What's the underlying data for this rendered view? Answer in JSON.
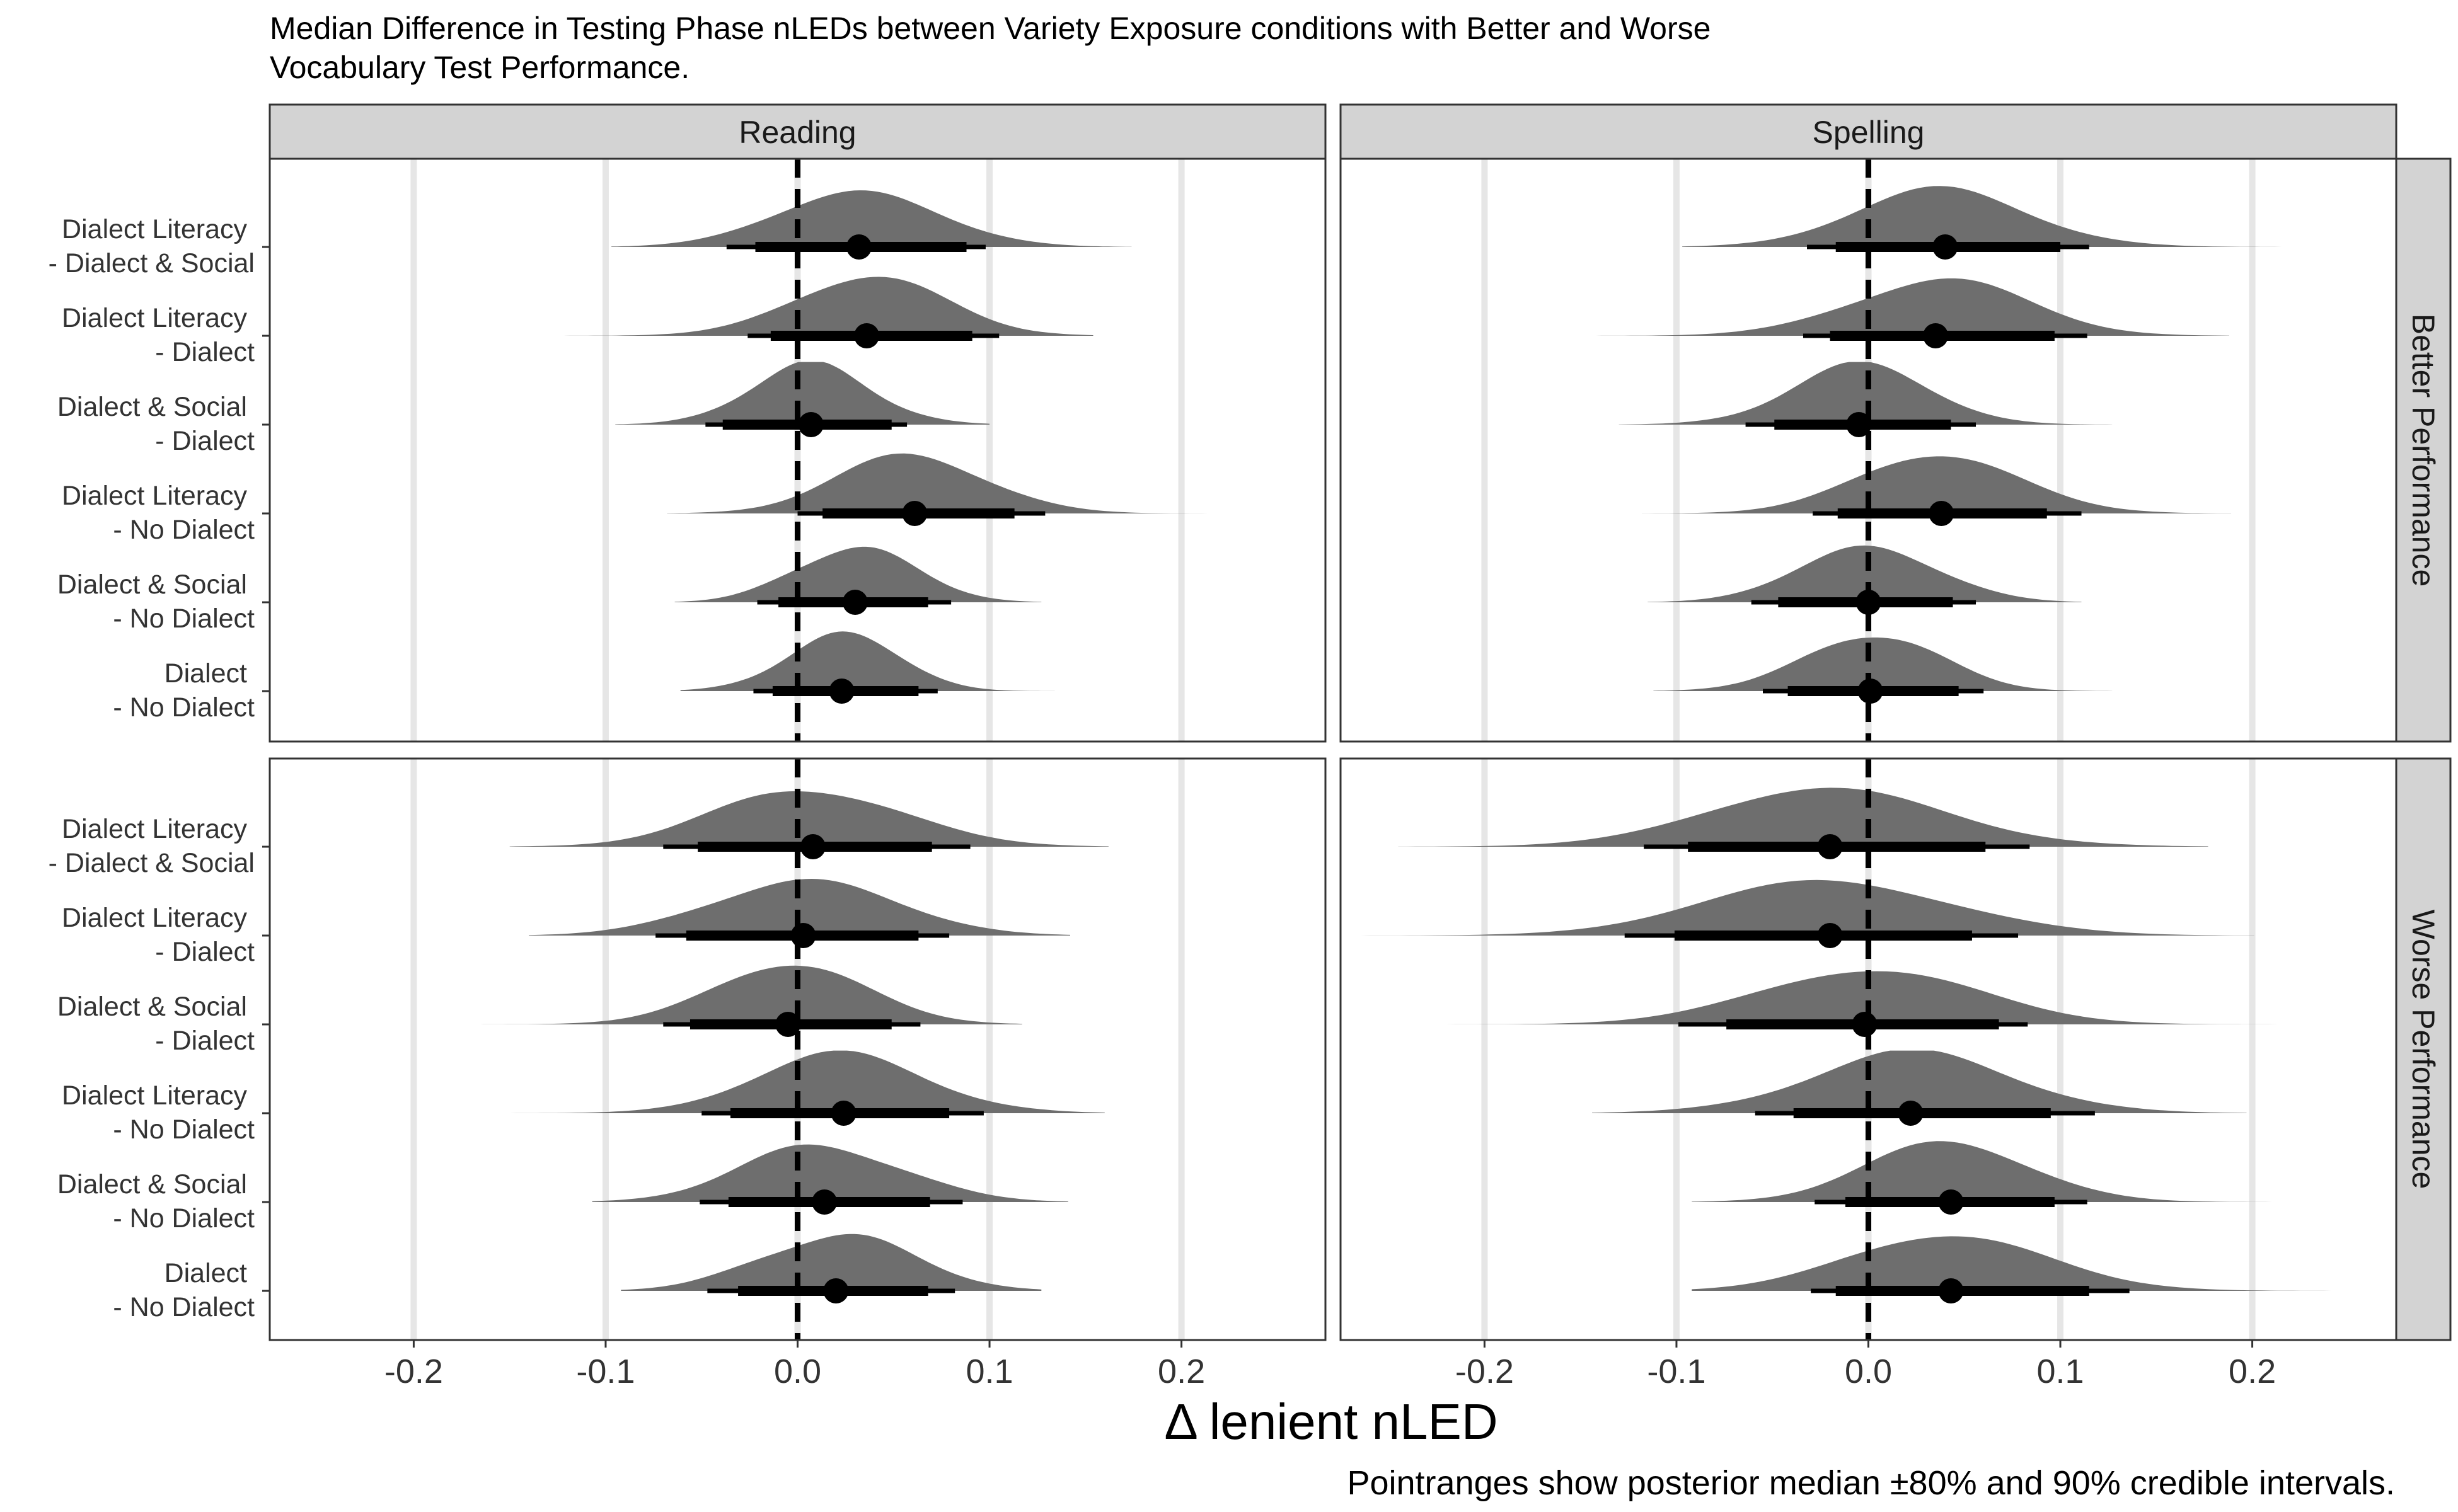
{
  "chart_data": {
    "type": "ridgeline-pointrange",
    "title": "Median Difference in Testing Phase nLEDs between Variety Exposure conditions with Better and Worse Vocabulary Test Performance.",
    "xlabel": "Δ lenient nLED",
    "caption": "Pointranges show posterior median ±80% and 90% credible intervals.",
    "xlim": [
      -0.275,
      0.275
    ],
    "x_ticks": [
      -0.2,
      -0.1,
      0.0,
      0.1,
      0.2
    ],
    "x_tick_labels": [
      "-0.2",
      "-0.1",
      "0.0",
      "0.1",
      "0.2"
    ],
    "reference_line": 0.0,
    "columns": [
      "Reading",
      "Spelling"
    ],
    "rows": [
      "Better Performance",
      "Worse Performance"
    ],
    "categories": [
      [
        "Dialect Literacy",
        "- Dialect & Social"
      ],
      [
        "Dialect Literacy",
        "- Dialect"
      ],
      [
        "Dialect & Social",
        "- Dialect"
      ],
      [
        "Dialect Literacy",
        "- No Dialect"
      ],
      [
        "Dialect & Social",
        "- No Dialect"
      ],
      [
        "Dialect",
        "- No Dialect"
      ]
    ],
    "series": [
      {
        "column": "Reading",
        "row": "Better Performance",
        "values": [
          {
            "median": 0.032,
            "ci80": [
              -0.022,
              0.088
            ],
            "ci90": [
              -0.037,
              0.098
            ],
            "range": [
              -0.097,
              0.174
            ]
          },
          {
            "median": 0.036,
            "ci80": [
              -0.014,
              0.091
            ],
            "ci90": [
              -0.026,
              0.105
            ],
            "range": [
              -0.125,
              0.154
            ]
          },
          {
            "median": 0.007,
            "ci80": [
              -0.039,
              0.049
            ],
            "ci90": [
              -0.048,
              0.057
            ],
            "range": [
              -0.095,
              0.1
            ]
          },
          {
            "median": 0.061,
            "ci80": [
              0.013,
              0.113
            ],
            "ci90": [
              0.0,
              0.129
            ],
            "range": [
              -0.068,
              0.217
            ]
          },
          {
            "median": 0.03,
            "ci80": [
              -0.01,
              0.068
            ],
            "ci90": [
              -0.021,
              0.08
            ],
            "range": [
              -0.064,
              0.127
            ]
          },
          {
            "median": 0.023,
            "ci80": [
              -0.013,
              0.063
            ],
            "ci90": [
              -0.023,
              0.073
            ],
            "range": [
              -0.061,
              0.134
            ]
          }
        ]
      },
      {
        "column": "Spelling",
        "row": "Better Performance",
        "values": [
          {
            "median": 0.04,
            "ci80": [
              -0.017,
              0.1
            ],
            "ci90": [
              -0.032,
              0.115
            ],
            "range": [
              -0.097,
              0.23
            ]
          },
          {
            "median": 0.035,
            "ci80": [
              -0.02,
              0.097
            ],
            "ci90": [
              -0.034,
              0.114
            ],
            "range": [
              -0.142,
              0.188
            ]
          },
          {
            "median": -0.005,
            "ci80": [
              -0.049,
              0.043
            ],
            "ci90": [
              -0.064,
              0.056
            ],
            "range": [
              -0.13,
              0.127
            ]
          },
          {
            "median": 0.038,
            "ci80": [
              -0.016,
              0.093
            ],
            "ci90": [
              -0.029,
              0.111
            ],
            "range": [
              -0.118,
              0.189
            ]
          },
          {
            "median": 0.0,
            "ci80": [
              -0.047,
              0.044
            ],
            "ci90": [
              -0.061,
              0.056
            ],
            "range": [
              -0.115,
              0.111
            ]
          },
          {
            "median": 0.001,
            "ci80": [
              -0.042,
              0.047
            ],
            "ci90": [
              -0.055,
              0.06
            ],
            "range": [
              -0.112,
              0.127
            ]
          }
        ]
      },
      {
        "column": "Reading",
        "row": "Worse Performance",
        "values": [
          {
            "median": 0.008,
            "ci80": [
              -0.052,
              0.07
            ],
            "ci90": [
              -0.07,
              0.09
            ],
            "range": [
              -0.15,
              0.162
            ]
          },
          {
            "median": 0.003,
            "ci80": [
              -0.058,
              0.063
            ],
            "ci90": [
              -0.074,
              0.079
            ],
            "range": [
              -0.14,
              0.142
            ]
          },
          {
            "median": -0.005,
            "ci80": [
              -0.056,
              0.049
            ],
            "ci90": [
              -0.07,
              0.064
            ],
            "range": [
              -0.17,
              0.117
            ]
          },
          {
            "median": 0.024,
            "ci80": [
              -0.035,
              0.079
            ],
            "ci90": [
              -0.05,
              0.097
            ],
            "range": [
              -0.15,
              0.16
            ]
          },
          {
            "median": 0.014,
            "ci80": [
              -0.036,
              0.069
            ],
            "ci90": [
              -0.051,
              0.086
            ],
            "range": [
              -0.107,
              0.141
            ]
          },
          {
            "median": 0.02,
            "ci80": [
              -0.031,
              0.068
            ],
            "ci90": [
              -0.047,
              0.082
            ],
            "range": [
              -0.092,
              0.127
            ]
          }
        ]
      },
      {
        "column": "Spelling",
        "row": "Worse Performance",
        "values": [
          {
            "median": -0.02,
            "ci80": [
              -0.094,
              0.061
            ],
            "ci90": [
              -0.117,
              0.084
            ],
            "range": [
              -0.245,
              0.177
            ]
          },
          {
            "median": -0.02,
            "ci80": [
              -0.101,
              0.054
            ],
            "ci90": [
              -0.127,
              0.078
            ],
            "range": [
              -0.265,
              0.201
            ]
          },
          {
            "median": -0.002,
            "ci80": [
              -0.074,
              0.068
            ],
            "ci90": [
              -0.099,
              0.083
            ],
            "range": [
              -0.22,
              0.239
            ]
          },
          {
            "median": 0.022,
            "ci80": [
              -0.039,
              0.095
            ],
            "ci90": [
              -0.059,
              0.118
            ],
            "range": [
              -0.144,
              0.197
            ]
          },
          {
            "median": 0.043,
            "ci80": [
              -0.012,
              0.097
            ],
            "ci90": [
              -0.028,
              0.114
            ],
            "range": [
              -0.092,
              0.236
            ]
          },
          {
            "median": 0.043,
            "ci80": [
              -0.017,
              0.115
            ],
            "ci90": [
              -0.03,
              0.136
            ],
            "range": [
              -0.092,
              0.265
            ]
          }
        ]
      }
    ],
    "colors": {
      "density": "#6e6e6e",
      "strip": "#d3d3d3",
      "grid": "#e6e6e6",
      "reference": "#000000",
      "point": "#000000"
    }
  }
}
